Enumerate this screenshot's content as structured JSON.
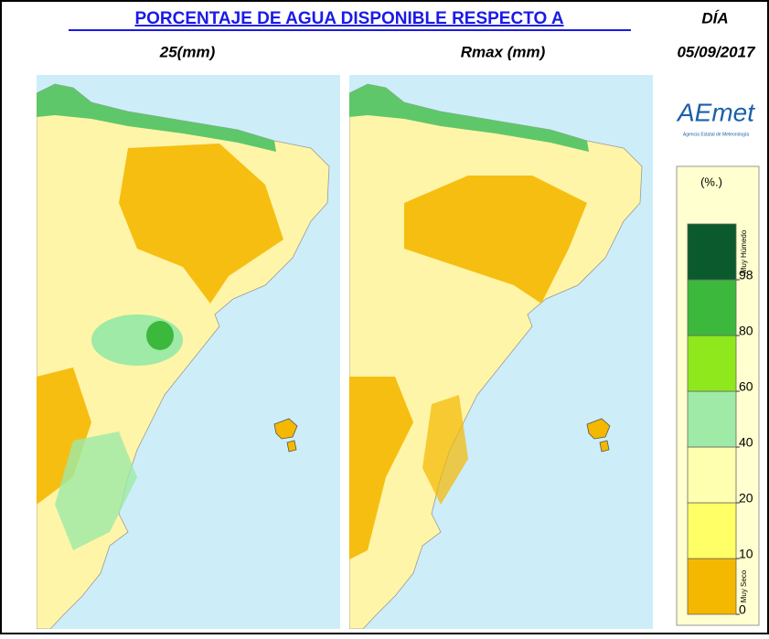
{
  "header": {
    "title": "PORCENTAJE DE AGUA  DISPONIBLE RESPECTO A",
    "day_label": "DÍA",
    "date": "05/09/2017"
  },
  "panels": [
    {
      "label": "25(mm)"
    },
    {
      "label": "Rmax (mm)"
    }
  ],
  "logo": {
    "name": "AEmet",
    "subtitle": "Agencia Estatal de Meteorología"
  },
  "legend": {
    "unit": "(%.)",
    "top_label": "Muy Húmedo",
    "bottom_label": "Muy Seco",
    "colors": [
      "#f5b800",
      "#ffff66",
      "#ffffb0",
      "#9eeaa6",
      "#8fe81c",
      "#3cb83c",
      "#0b5a2e"
    ],
    "ticks": [
      0,
      10,
      20,
      40,
      60,
      80,
      98
    ]
  }
}
